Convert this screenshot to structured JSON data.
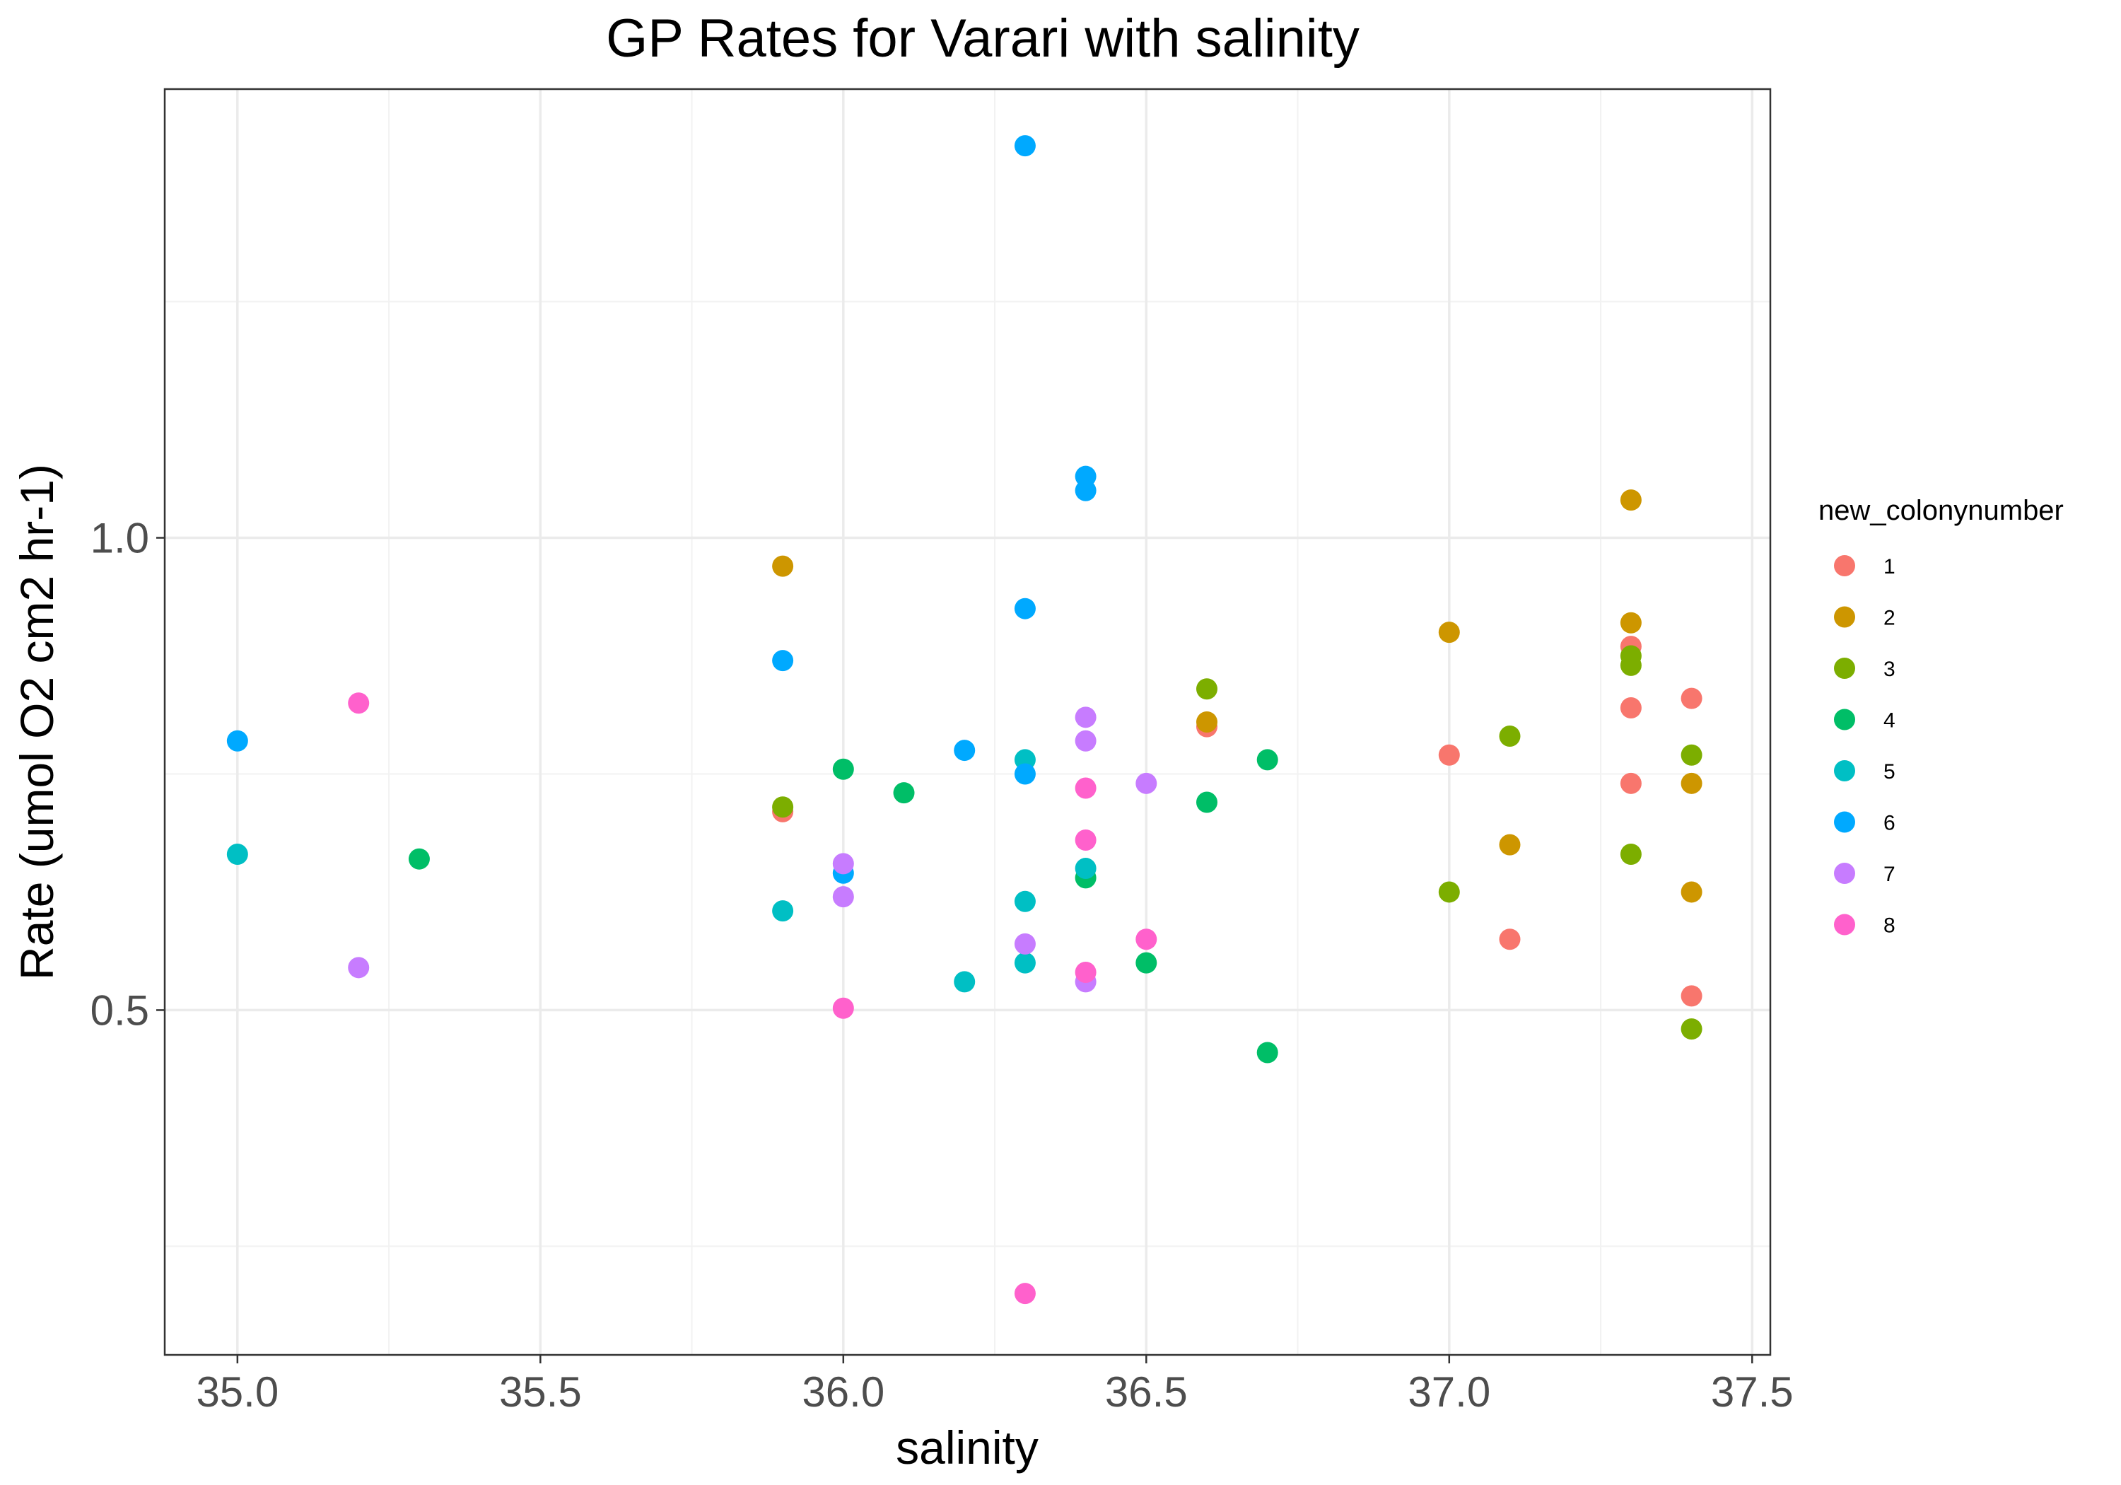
{
  "chart_data": {
    "type": "scatter",
    "title": "GP Rates for Varari with salinity",
    "xlabel": "salinity",
    "ylabel": "Rate (umol O2 cm2 hr-1)",
    "xlim": [
      34.88,
      37.53
    ],
    "ylim": [
      0.135,
      1.475
    ],
    "x_ticks": [
      35.0,
      35.5,
      36.0,
      36.5,
      37.0,
      37.5
    ],
    "x_tick_labels": [
      "35.0",
      "35.5",
      "36.0",
      "36.5",
      "37.0",
      "37.5"
    ],
    "y_ticks": [
      0.5,
      1.0
    ],
    "y_tick_labels": [
      "0.5",
      "1.0"
    ],
    "x_minor_ticks": [
      35.25,
      35.75,
      36.25,
      36.75,
      37.25
    ],
    "y_minor_ticks": [
      0.25,
      0.75,
      1.25
    ],
    "grid": true,
    "legend": {
      "title": "new_colonynumber",
      "position": "right"
    },
    "series": [
      {
        "name": "1",
        "color": "#F8766D",
        "x": [
          35.9,
          36.6,
          37.0,
          37.1,
          37.3,
          37.3,
          37.3,
          37.4,
          37.4
        ],
        "y": [
          0.71,
          0.8,
          0.77,
          0.575,
          0.885,
          0.82,
          0.74,
          0.83,
          0.515
        ]
      },
      {
        "name": "2",
        "color": "#CD9600",
        "x": [
          35.9,
          36.6,
          37.0,
          37.1,
          37.3,
          37.3,
          37.4,
          37.4
        ],
        "y": [
          0.97,
          0.805,
          0.9,
          0.675,
          1.04,
          0.91,
          0.74,
          0.625
        ]
      },
      {
        "name": "3",
        "color": "#7CAE00",
        "x": [
          35.9,
          36.6,
          37.0,
          37.1,
          37.3,
          37.3,
          37.3,
          37.4,
          37.4
        ],
        "y": [
          0.715,
          0.84,
          0.625,
          0.79,
          0.875,
          0.865,
          0.665,
          0.77,
          0.48
        ]
      },
      {
        "name": "4",
        "color": "#00BE67",
        "x": [
          35.3,
          36.0,
          36.1,
          36.4,
          36.5,
          36.6,
          36.7,
          36.7
        ],
        "y": [
          0.66,
          0.755,
          0.73,
          0.64,
          0.55,
          0.72,
          0.765,
          0.455
        ]
      },
      {
        "name": "5",
        "color": "#00BFC4",
        "x": [
          35.0,
          35.9,
          36.2,
          36.3,
          36.3,
          36.3,
          36.4
        ],
        "y": [
          0.665,
          0.605,
          0.53,
          0.765,
          0.615,
          0.55,
          0.65
        ]
      },
      {
        "name": "6",
        "color": "#00A9FF",
        "x": [
          35.0,
          35.9,
          36.0,
          36.2,
          36.3,
          36.3,
          36.3,
          36.4,
          36.4
        ],
        "y": [
          0.785,
          0.87,
          0.645,
          0.775,
          1.415,
          0.925,
          0.75,
          1.065,
          1.05
        ]
      },
      {
        "name": "7",
        "color": "#C77CFF",
        "x": [
          35.2,
          36.0,
          36.0,
          36.3,
          36.4,
          36.4,
          36.5,
          36.4
        ],
        "y": [
          0.545,
          0.655,
          0.62,
          0.57,
          0.81,
          0.785,
          0.74,
          0.53
        ]
      },
      {
        "name": "8",
        "color": "#FF61CC",
        "x": [
          35.2,
          36.0,
          36.3,
          36.4,
          36.4,
          36.4,
          36.5
        ],
        "y": [
          0.825,
          0.502,
          0.2,
          0.735,
          0.68,
          0.54,
          0.575
        ]
      }
    ]
  }
}
